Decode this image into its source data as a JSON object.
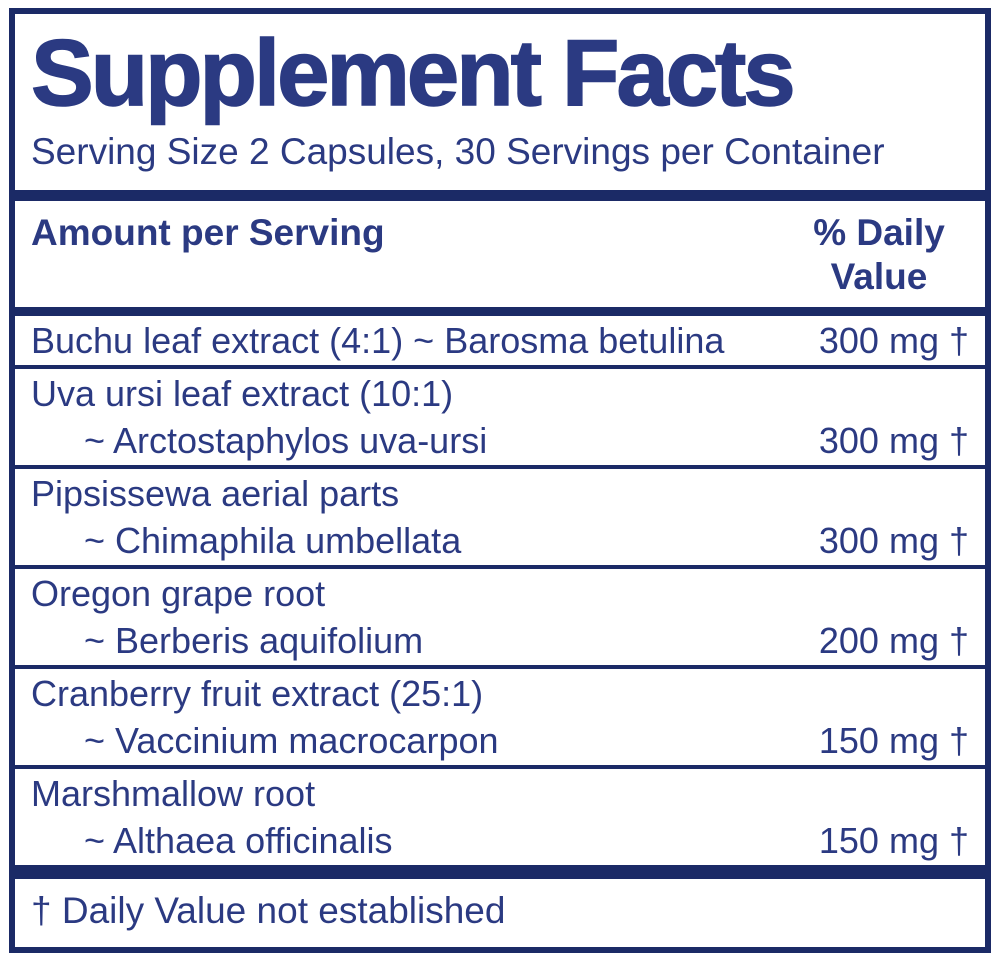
{
  "title": "Supplement Facts",
  "serving_info": "Serving Size 2 Capsules, 30 Servings per Container",
  "header": {
    "amount_label": "Amount per Serving",
    "daily_value_label": "% Daily Value"
  },
  "rows": [
    {
      "line1": "Buchu leaf extract (4:1) ~ Barosma betulina",
      "line2": "",
      "amount": "300 mg †"
    },
    {
      "line1": "Uva ursi leaf extract (10:1)",
      "line2": "~ Arctostaphylos uva-ursi",
      "amount": "300 mg †"
    },
    {
      "line1": "Pipsissewa aerial parts",
      "line2": "~ Chimaphila umbellata",
      "amount": "300 mg †"
    },
    {
      "line1": "Oregon grape root",
      "line2": "~ Berberis aquifolium",
      "amount": "200 mg †"
    },
    {
      "line1": "Cranberry fruit extract (25:1)",
      "line2": "~ Vaccinium macrocarpon",
      "amount": "150 mg †"
    },
    {
      "line1": "Marshmallow root",
      "line2": "~ Althaea officinalis",
      "amount": "150 mg †"
    }
  ],
  "footnote": "† Daily Value not established",
  "colors": {
    "text_navy": "#2b3a82",
    "bar_navy": "#1b2a66",
    "background": "#ffffff"
  }
}
